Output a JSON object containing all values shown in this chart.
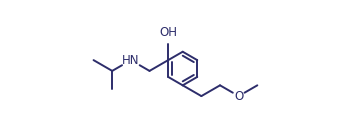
{
  "line_color": "#2d2d6b",
  "bg_color": "#ffffff",
  "oh_label": "OH",
  "hn_label": "HN",
  "o_label": "O",
  "font_size": 8.5,
  "lw": 1.4,
  "bl": 22
}
